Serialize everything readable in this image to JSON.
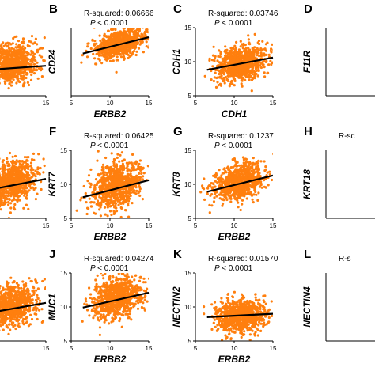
{
  "colors": {
    "points": "#ff7f0e",
    "trend_line": "#000000",
    "axes": "#000000"
  },
  "chart_data": [
    {
      "panel": "",
      "type": "scatter",
      "rsq_text": "",
      "p_text": "",
      "xlabel": "",
      "ylabel": "",
      "xlim": [
        5,
        15
      ],
      "ylim": [
        5,
        15
      ],
      "xticks": [
        "15"
      ],
      "yticks": [],
      "cloud": {
        "cx": 10.5,
        "cy": 9.8,
        "sx": 1.6,
        "sy": 1.4
      },
      "fit": {
        "x": [
          5,
          15
        ],
        "y": [
          8.6,
          9.4
        ]
      }
    },
    {
      "panel": "B",
      "type": "scatter",
      "rsq_text": "R-squared: 0.06666",
      "p_text": "< 0.0001",
      "xlabel": "ERBB2",
      "ylabel": "CD24",
      "xlim": [
        5,
        15
      ],
      "ylim": [
        5,
        15
      ],
      "xticks": [
        "5",
        "10",
        "15"
      ],
      "yticks": [],
      "cloud": {
        "cx": 11.3,
        "cy": 12.7,
        "sx": 1.6,
        "sy": 1.0
      },
      "fit": {
        "x": [
          6.5,
          15
        ],
        "y": [
          11.2,
          13.6
        ]
      }
    },
    {
      "panel": "C",
      "type": "scatter",
      "rsq_text": "R-squared: 0.03746",
      "p_text": "< 0.0001",
      "xlabel": "CDH1",
      "ylabel": "CDH1",
      "xlim": [
        5,
        15
      ],
      "ylim": [
        5,
        15
      ],
      "xticks": [
        "5",
        "10",
        "15"
      ],
      "yticks": [
        "5",
        "10",
        "15"
      ],
      "cloud": {
        "cx": 10.8,
        "cy": 9.8,
        "sx": 1.6,
        "sy": 1.3
      },
      "fit": {
        "x": [
          6.5,
          15
        ],
        "y": [
          8.8,
          10.6
        ]
      }
    },
    {
      "panel": "D",
      "type": "scatter",
      "rsq_text": "",
      "p_text": "",
      "xlabel": "",
      "ylabel": "F11R",
      "xlim": [
        5,
        15
      ],
      "ylim": [
        5,
        15
      ],
      "xticks": [],
      "yticks": [],
      "cloud": null,
      "fit": null
    },
    {
      "panel": "",
      "type": "scatter",
      "rsq_text": "",
      "p_text": "",
      "xlabel": "",
      "ylabel": "",
      "xlim": [
        5,
        15
      ],
      "ylim": [
        5,
        15
      ],
      "xticks": [
        "15"
      ],
      "yticks": [],
      "cloud": {
        "cx": 10.5,
        "cy": 10.3,
        "sx": 1.6,
        "sy": 1.5
      },
      "fit": {
        "x": [
          5,
          15
        ],
        "y": [
          8.6,
          10.8
        ]
      }
    },
    {
      "panel": "F",
      "type": "scatter",
      "rsq_text": "R-squared: 0.06425",
      "p_text": "< 0.0001",
      "xlabel": "ERBB2",
      "ylabel": "KRT7",
      "xlim": [
        5,
        15
      ],
      "ylim": [
        5,
        15
      ],
      "xticks": [
        "5",
        "10",
        "15"
      ],
      "yticks": [
        "5",
        "10",
        "15"
      ],
      "cloud": {
        "cx": 10.9,
        "cy": 9.8,
        "sx": 1.6,
        "sy": 1.7
      },
      "fit": {
        "x": [
          6.5,
          15
        ],
        "y": [
          8.1,
          10.6
        ]
      }
    },
    {
      "panel": "G",
      "type": "scatter",
      "rsq_text": "R-squared: 0.1237",
      "p_text": "< 0.0001",
      "xlabel": "ERBB2",
      "ylabel": "KRT8",
      "xlim": [
        5,
        15
      ],
      "ylim": [
        5,
        15
      ],
      "xticks": [
        "5",
        "10",
        "15"
      ],
      "yticks": [
        "5",
        "10",
        "15"
      ],
      "cloud": {
        "cx": 10.7,
        "cy": 10.4,
        "sx": 1.6,
        "sy": 1.3
      },
      "fit": {
        "x": [
          6.5,
          15
        ],
        "y": [
          8.9,
          11.3
        ]
      }
    },
    {
      "panel": "H",
      "type": "scatter",
      "rsq_text": "R-sc",
      "p_text": "",
      "xlabel": "",
      "ylabel": "KRT18",
      "xlim": [
        5,
        15
      ],
      "ylim": [
        5,
        15
      ],
      "xticks": [],
      "yticks": [],
      "cloud": null,
      "fit": null
    },
    {
      "panel": "",
      "type": "scatter",
      "rsq_text": "",
      "p_text": "",
      "xlabel": "",
      "ylabel": "",
      "xlim": [
        5,
        15
      ],
      "ylim": [
        5,
        15
      ],
      "xticks": [
        "15"
      ],
      "yticks": [],
      "cloud": {
        "cx": 10.5,
        "cy": 10.2,
        "sx": 1.6,
        "sy": 1.5
      },
      "fit": {
        "x": [
          5,
          15
        ],
        "y": [
          8.6,
          10.6
        ]
      }
    },
    {
      "panel": "J",
      "type": "scatter",
      "rsq_text": "R-squared: 0.04274",
      "p_text": "< 0.0001",
      "xlabel": "ERBB2",
      "ylabel": "MUC1",
      "xlim": [
        5,
        15
      ],
      "ylim": [
        5,
        15
      ],
      "xticks": [
        "5",
        "10",
        "15"
      ],
      "yticks": [
        "5",
        "10",
        "15"
      ],
      "cloud": {
        "cx": 10.9,
        "cy": 11.5,
        "sx": 1.6,
        "sy": 1.5
      },
      "fit": {
        "x": [
          6.5,
          15
        ],
        "y": [
          9.9,
          12.1
        ]
      }
    },
    {
      "panel": "K",
      "type": "scatter",
      "rsq_text": "R-squared: 0.01570",
      "p_text": "< 0.0001",
      "xlabel": "ERBB2",
      "ylabel": "NECTIN2",
      "xlim": [
        5,
        15
      ],
      "ylim": [
        5,
        15
      ],
      "xticks": [
        "5",
        "10",
        "15"
      ],
      "yticks": [
        "5",
        "10",
        "15"
      ],
      "cloud": {
        "cx": 10.8,
        "cy": 8.7,
        "sx": 1.6,
        "sy": 1.2
      },
      "fit": {
        "x": [
          6.5,
          15
        ],
        "y": [
          8.5,
          9.0
        ]
      }
    },
    {
      "panel": "L",
      "type": "scatter",
      "rsq_text": "R-s",
      "p_text": "",
      "xlabel": "",
      "ylabel": "NECTIN4",
      "xlim": [
        5,
        15
      ],
      "ylim": [
        5,
        15
      ],
      "xticks": [],
      "yticks": [],
      "cloud": null,
      "fit": null
    }
  ]
}
